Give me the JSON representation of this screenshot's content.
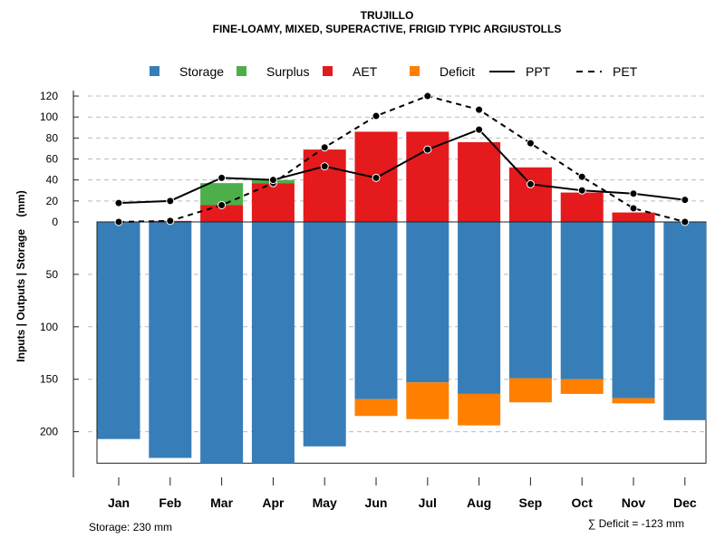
{
  "chart_data": {
    "type": "bar",
    "title": "TRUJILLO",
    "subtitle": "FINE-LOAMY, MIXED, SUPERACTIVE, FRIGID TYPIC ARGIUSTOLLS",
    "ylabel": "Inputs | Outputs | Storage    (mm)",
    "categories": [
      "Jan",
      "Feb",
      "Mar",
      "Apr",
      "May",
      "Jun",
      "Jul",
      "Aug",
      "Sep",
      "Oct",
      "Nov",
      "Dec"
    ],
    "upper_ticks": [
      0,
      20,
      40,
      60,
      80,
      100,
      120
    ],
    "lower_ticks": [
      50,
      100,
      150,
      200
    ],
    "ylim_upper": [
      0,
      120
    ],
    "ylim_lower": [
      0,
      230
    ],
    "legend": {
      "placement": "top",
      "items": [
        {
          "label": "Storage",
          "type": "box",
          "color": "#377EB8"
        },
        {
          "label": "Surplus",
          "type": "box",
          "color": "#4DAF4A"
        },
        {
          "label": "AET",
          "type": "box",
          "color": "#E41A1C"
        },
        {
          "label": "Deficit",
          "type": "box",
          "color": "#FF7F00"
        },
        {
          "label": "PPT",
          "type": "solid-line",
          "color": "#000000"
        },
        {
          "label": "PET",
          "type": "dashed-line",
          "color": "#000000"
        }
      ]
    },
    "series": [
      {
        "name": "AET",
        "values": [
          0,
          1,
          16,
          37,
          69,
          86,
          86,
          76,
          52,
          28,
          9,
          0
        ]
      },
      {
        "name": "Surplus",
        "values": [
          0,
          0,
          21,
          3,
          0,
          0,
          0,
          0,
          0,
          0,
          0,
          0
        ]
      },
      {
        "name": "Storage",
        "values": [
          207,
          225,
          230,
          230,
          214,
          169,
          153,
          164,
          149,
          150,
          168,
          189
        ]
      },
      {
        "name": "Deficit",
        "values": [
          0,
          0,
          0,
          0,
          0,
          16,
          35,
          30,
          23,
          14,
          5,
          0
        ]
      },
      {
        "name": "PPT",
        "values": [
          18,
          20,
          42,
          40,
          53,
          42,
          69,
          88,
          36,
          30,
          27,
          21
        ]
      },
      {
        "name": "PET",
        "values": [
          0,
          1,
          16,
          37,
          71,
          101,
          120,
          107,
          75,
          43,
          13,
          0
        ]
      }
    ],
    "annotations": {
      "storage": "Storage: 230 mm",
      "deficit": "∑ Deficit = -123 mm"
    }
  }
}
